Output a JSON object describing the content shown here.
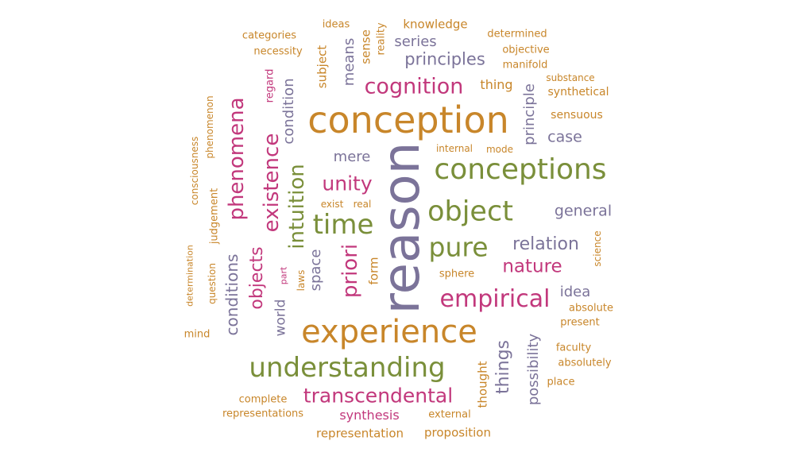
{
  "palette": {
    "gold": "#c8862a",
    "green": "#7a8f3a",
    "pink": "#c2387c",
    "slate": "#7b7399"
  },
  "words": [
    {
      "text": "reason",
      "color": "slate"
    },
    {
      "text": "conception",
      "color": "gold"
    },
    {
      "text": "experience",
      "color": "gold"
    },
    {
      "text": "conceptions",
      "color": "green"
    },
    {
      "text": "understanding",
      "color": "green"
    },
    {
      "text": "object",
      "color": "green"
    },
    {
      "text": "time",
      "color": "green"
    },
    {
      "text": "pure",
      "color": "green"
    },
    {
      "text": "empirical",
      "color": "pink"
    },
    {
      "text": "transcendental",
      "color": "pink"
    },
    {
      "text": "phenomena",
      "color": "pink"
    },
    {
      "text": "existence",
      "color": "pink"
    },
    {
      "text": "intuition",
      "color": "green"
    },
    {
      "text": "cognition",
      "color": "pink"
    },
    {
      "text": "unity",
      "color": "pink"
    },
    {
      "text": "priori",
      "color": "pink"
    },
    {
      "text": "objects",
      "color": "pink"
    },
    {
      "text": "nature",
      "color": "pink"
    },
    {
      "text": "relation",
      "color": "slate"
    },
    {
      "text": "principles",
      "color": "slate"
    },
    {
      "text": "things",
      "color": "slate"
    },
    {
      "text": "conditions",
      "color": "slate"
    },
    {
      "text": "general",
      "color": "slate"
    },
    {
      "text": "possibility",
      "color": "slate"
    },
    {
      "text": "mere",
      "color": "slate"
    },
    {
      "text": "idea",
      "color": "slate"
    },
    {
      "text": "case",
      "color": "slate"
    },
    {
      "text": "principle",
      "color": "slate"
    },
    {
      "text": "series",
      "color": "slate"
    },
    {
      "text": "condition",
      "color": "slate"
    },
    {
      "text": "means",
      "color": "slate"
    },
    {
      "text": "space",
      "color": "slate"
    },
    {
      "text": "world",
      "color": "slate"
    },
    {
      "text": "synthesis",
      "color": "pink"
    },
    {
      "text": "representation",
      "color": "gold"
    },
    {
      "text": "proposition",
      "color": "gold"
    },
    {
      "text": "knowledge",
      "color": "gold"
    },
    {
      "text": "thing",
      "color": "gold"
    },
    {
      "text": "subject",
      "color": "gold"
    },
    {
      "text": "sense",
      "color": "gold"
    },
    {
      "text": "thought",
      "color": "gold"
    },
    {
      "text": "form",
      "color": "gold"
    },
    {
      "text": "sensuous",
      "color": "gold"
    },
    {
      "text": "synthetical",
      "color": "gold"
    },
    {
      "text": "representations",
      "color": "gold"
    },
    {
      "text": "sphere",
      "color": "gold"
    },
    {
      "text": "reality",
      "color": "gold"
    },
    {
      "text": "regard",
      "color": "pink"
    },
    {
      "text": "judgement",
      "color": "gold"
    },
    {
      "text": "ideas",
      "color": "gold"
    },
    {
      "text": "categories",
      "color": "gold"
    },
    {
      "text": "necessity",
      "color": "gold"
    },
    {
      "text": "determined",
      "color": "gold"
    },
    {
      "text": "objective",
      "color": "gold"
    },
    {
      "text": "manifold",
      "color": "gold"
    },
    {
      "text": "substance",
      "color": "gold"
    },
    {
      "text": "internal",
      "color": "gold"
    },
    {
      "text": "mode",
      "color": "gold"
    },
    {
      "text": "exist",
      "color": "gold"
    },
    {
      "text": "real",
      "color": "gold"
    },
    {
      "text": "laws",
      "color": "gold"
    },
    {
      "text": "part",
      "color": "pink"
    },
    {
      "text": "phenomenon",
      "color": "gold"
    },
    {
      "text": "consciousness",
      "color": "gold"
    },
    {
      "text": "determination",
      "color": "gold"
    },
    {
      "text": "question",
      "color": "gold"
    },
    {
      "text": "mind",
      "color": "gold"
    },
    {
      "text": "science",
      "color": "gold"
    },
    {
      "text": "absolute",
      "color": "gold"
    },
    {
      "text": "present",
      "color": "gold"
    },
    {
      "text": "faculty",
      "color": "gold"
    },
    {
      "text": "absolutely",
      "color": "gold"
    },
    {
      "text": "place",
      "color": "gold"
    },
    {
      "text": "complete",
      "color": "gold"
    },
    {
      "text": "external",
      "color": "gold"
    }
  ]
}
